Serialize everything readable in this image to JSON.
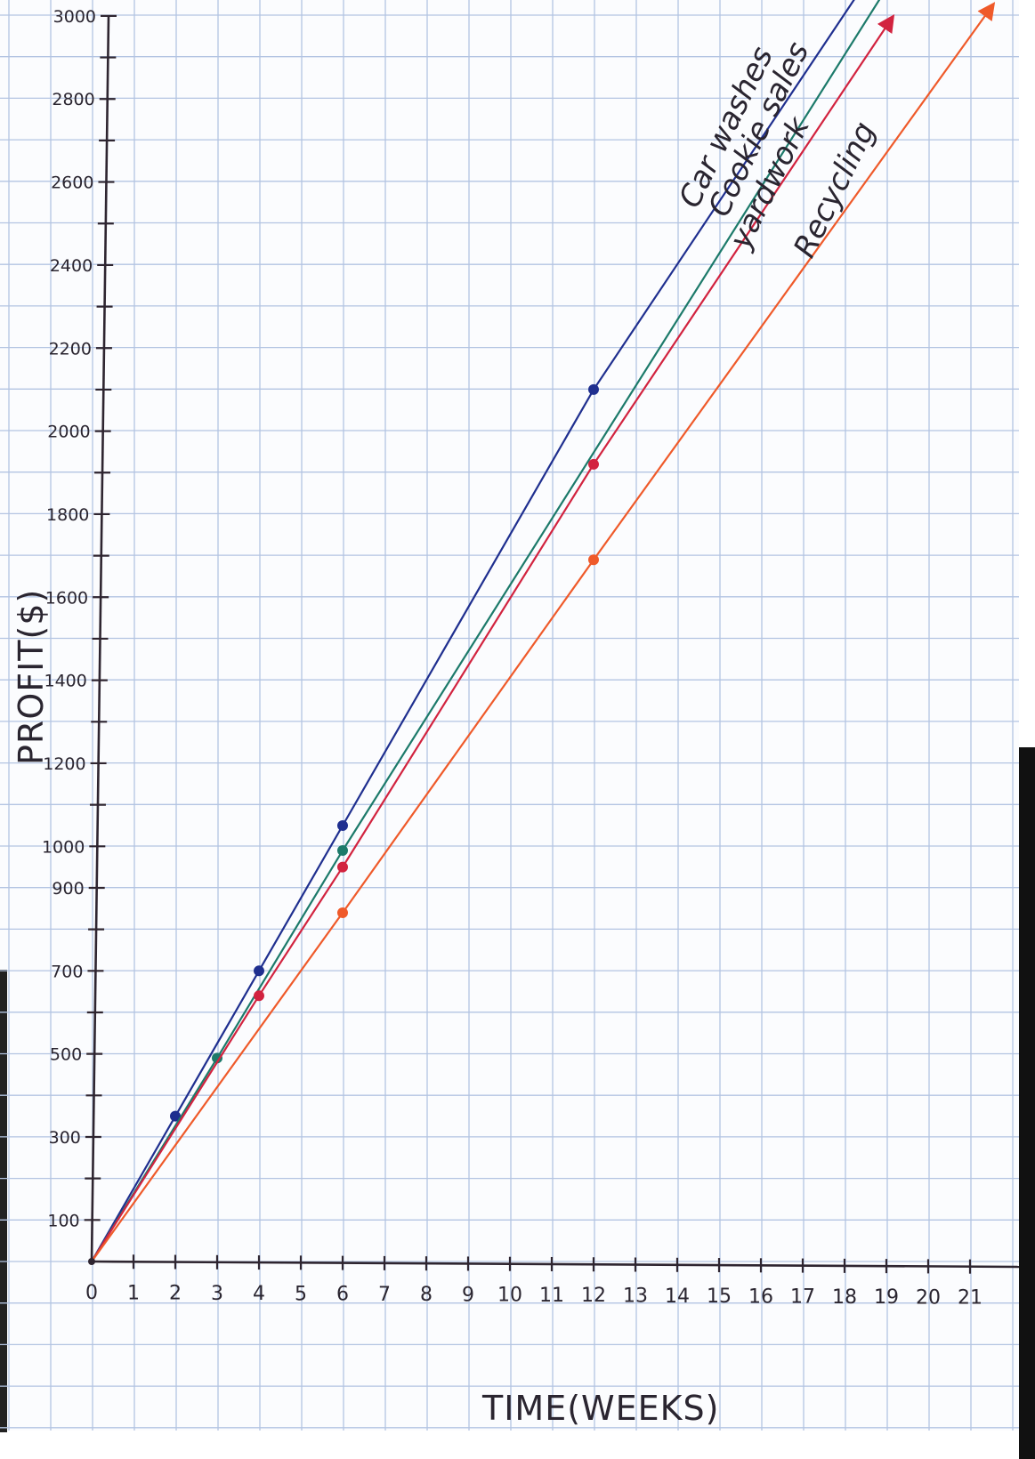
{
  "chart_data": {
    "type": "line",
    "xlabel": "TIME(WEEKS)",
    "ylabel": "PROFIT($)",
    "xlim": [
      0,
      22
    ],
    "ylim": [
      0,
      3000
    ],
    "x_ticks": [
      "0",
      "1",
      "2",
      "3",
      "4",
      "5",
      "6",
      "7",
      "8",
      "9",
      "10",
      "11",
      "12",
      "13",
      "14",
      "15",
      "16",
      "17",
      "18",
      "19",
      "20",
      "21"
    ],
    "y_ticks": [
      {
        "value": 100,
        "label": "100"
      },
      {
        "value": 300,
        "label": "300"
      },
      {
        "value": 500,
        "label": "500"
      },
      {
        "value": 700,
        "label": "700"
      },
      {
        "value": 900,
        "label": "900"
      },
      {
        "value": 1000,
        "label": "1000"
      },
      {
        "value": 1200,
        "label": "1200"
      },
      {
        "value": 1400,
        "label": "1400"
      },
      {
        "value": 1600,
        "label": "1600"
      },
      {
        "value": 1800,
        "label": "1800"
      },
      {
        "value": 2000,
        "label": "2000"
      },
      {
        "value": 2200,
        "label": "2200"
      },
      {
        "value": 2400,
        "label": "2400"
      },
      {
        "value": 2600,
        "label": "2600"
      },
      {
        "value": 2800,
        "label": "2800"
      },
      {
        "value": 3000,
        "label": "3000"
      }
    ],
    "grid": true,
    "series": [
      {
        "name": "Car washes",
        "color": "#1f2f8f",
        "points": [
          [
            0,
            0
          ],
          [
            2,
            350
          ],
          [
            4,
            700
          ],
          [
            6,
            1050
          ],
          [
            12,
            2100
          ]
        ],
        "line_end": [
          18.3,
          3050
        ],
        "arrow": false
      },
      {
        "name": "Cookie sales",
        "color": "#1c7a6a",
        "points": [
          [
            0,
            0
          ],
          [
            3,
            490
          ],
          [
            6,
            990
          ]
        ],
        "line_end": [
          18.9,
          3050
        ],
        "arrow": false
      },
      {
        "name": "yardwork",
        "color": "#d2233f",
        "points": [
          [
            0,
            0
          ],
          [
            4,
            640
          ],
          [
            6,
            950
          ],
          [
            12,
            1920
          ]
        ],
        "line_end": [
          19.1,
          2990
        ],
        "arrow": true
      },
      {
        "name": "Recycling",
        "color": "#ef5a2a",
        "points": [
          [
            0,
            0
          ],
          [
            6,
            840
          ],
          [
            12,
            1690
          ]
        ],
        "line_end": [
          21.5,
          3020
        ],
        "arrow": true
      }
    ]
  }
}
